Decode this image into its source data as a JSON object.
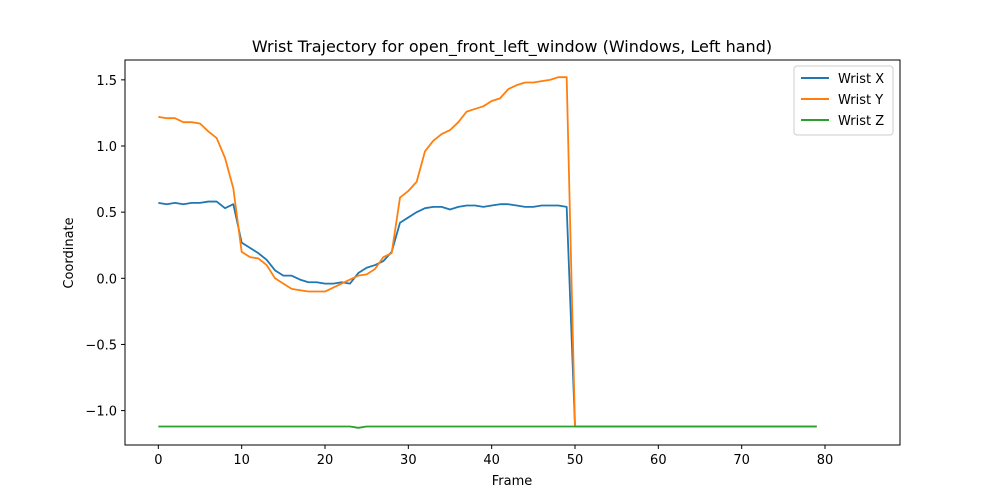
{
  "chart_data": {
    "type": "line",
    "title": "Wrist Trajectory for open_front_left_window (Windows, Left hand)",
    "xlabel": "Frame",
    "ylabel": "Coordinate",
    "xlim": [
      -4,
      89
    ],
    "ylim": [
      -1.26,
      1.65
    ],
    "xticks": [
      0,
      10,
      20,
      30,
      40,
      50,
      60,
      70,
      80
    ],
    "yticks": [
      -1.0,
      -0.5,
      0.0,
      0.5,
      1.0,
      1.5
    ],
    "ytick_labels": [
      "−1.0",
      "−0.5",
      "0.0",
      "0.5",
      "1.0",
      "1.5"
    ],
    "grid": false,
    "legend": "top-right",
    "x": [
      0,
      1,
      2,
      3,
      4,
      5,
      6,
      7,
      8,
      9,
      10,
      11,
      12,
      13,
      14,
      15,
      16,
      17,
      18,
      19,
      20,
      21,
      22,
      23,
      24,
      25,
      26,
      27,
      28,
      29,
      30,
      31,
      32,
      33,
      34,
      35,
      36,
      37,
      38,
      39,
      40,
      41,
      42,
      43,
      44,
      45,
      46,
      47,
      48,
      49,
      50,
      51,
      52,
      53,
      54,
      55,
      56,
      57,
      58,
      59,
      60,
      61,
      62,
      63,
      64,
      65,
      66,
      67,
      68,
      69,
      70,
      71,
      72,
      73,
      74,
      75,
      76,
      77,
      78,
      79
    ],
    "series": [
      {
        "name": "Wrist X",
        "color": "#1f77b4",
        "values": [
          0.57,
          0.56,
          0.57,
          0.56,
          0.57,
          0.57,
          0.58,
          0.58,
          0.53,
          0.56,
          0.27,
          0.23,
          0.19,
          0.14,
          0.06,
          0.02,
          0.02,
          -0.01,
          -0.03,
          -0.03,
          -0.04,
          -0.04,
          -0.03,
          -0.04,
          0.04,
          0.08,
          0.1,
          0.13,
          0.2,
          0.42,
          0.46,
          0.5,
          0.53,
          0.54,
          0.54,
          0.52,
          0.54,
          0.55,
          0.55,
          0.54,
          0.55,
          0.56,
          0.56,
          0.55,
          0.54,
          0.54,
          0.55,
          0.55,
          0.55,
          0.54,
          -1.12,
          -1.12,
          -1.12,
          -1.12,
          -1.12,
          -1.12,
          -1.12,
          -1.12,
          -1.12,
          -1.12,
          -1.12,
          -1.12,
          -1.12,
          -1.12,
          -1.12,
          -1.12,
          -1.12,
          -1.12,
          -1.12,
          -1.12,
          -1.12,
          -1.12,
          -1.12,
          -1.12,
          -1.12,
          -1.12,
          -1.12,
          -1.12,
          -1.12,
          -1.12
        ]
      },
      {
        "name": "Wrist Y",
        "color": "#ff7f0e",
        "values": [
          1.22,
          1.21,
          1.21,
          1.18,
          1.18,
          1.17,
          1.11,
          1.06,
          0.91,
          0.68,
          0.2,
          0.16,
          0.15,
          0.1,
          0.0,
          -0.04,
          -0.08,
          -0.09,
          -0.1,
          -0.1,
          -0.1,
          -0.07,
          -0.04,
          -0.01,
          0.02,
          0.03,
          0.07,
          0.16,
          0.19,
          0.61,
          0.66,
          0.73,
          0.96,
          1.04,
          1.09,
          1.12,
          1.18,
          1.26,
          1.28,
          1.3,
          1.34,
          1.36,
          1.43,
          1.46,
          1.48,
          1.48,
          1.49,
          1.5,
          1.52,
          1.52,
          -1.12,
          -1.12,
          -1.12,
          -1.12,
          -1.12,
          -1.12,
          -1.12,
          -1.12,
          -1.12,
          -1.12,
          -1.12,
          -1.12,
          -1.12,
          -1.12,
          -1.12,
          -1.12,
          -1.12,
          -1.12,
          -1.12,
          -1.12,
          -1.12,
          -1.12,
          -1.12,
          -1.12,
          -1.12,
          -1.12,
          -1.12,
          -1.12,
          -1.12,
          -1.12
        ]
      },
      {
        "name": "Wrist Z",
        "color": "#2ca02c",
        "values": [
          -1.12,
          -1.12,
          -1.12,
          -1.12,
          -1.12,
          -1.12,
          -1.12,
          -1.12,
          -1.12,
          -1.12,
          -1.12,
          -1.12,
          -1.12,
          -1.12,
          -1.12,
          -1.12,
          -1.12,
          -1.12,
          -1.12,
          -1.12,
          -1.12,
          -1.12,
          -1.12,
          -1.12,
          -1.13,
          -1.12,
          -1.12,
          -1.12,
          -1.12,
          -1.12,
          -1.12,
          -1.12,
          -1.12,
          -1.12,
          -1.12,
          -1.12,
          -1.12,
          -1.12,
          -1.12,
          -1.12,
          -1.12,
          -1.12,
          -1.12,
          -1.12,
          -1.12,
          -1.12,
          -1.12,
          -1.12,
          -1.12,
          -1.12,
          -1.12,
          -1.12,
          -1.12,
          -1.12,
          -1.12,
          -1.12,
          -1.12,
          -1.12,
          -1.12,
          -1.12,
          -1.12,
          -1.12,
          -1.12,
          -1.12,
          -1.12,
          -1.12,
          -1.12,
          -1.12,
          -1.12,
          -1.12,
          -1.12,
          -1.12,
          -1.12,
          -1.12,
          -1.12,
          -1.12,
          -1.12,
          -1.12,
          -1.12,
          -1.12
        ]
      }
    ]
  }
}
